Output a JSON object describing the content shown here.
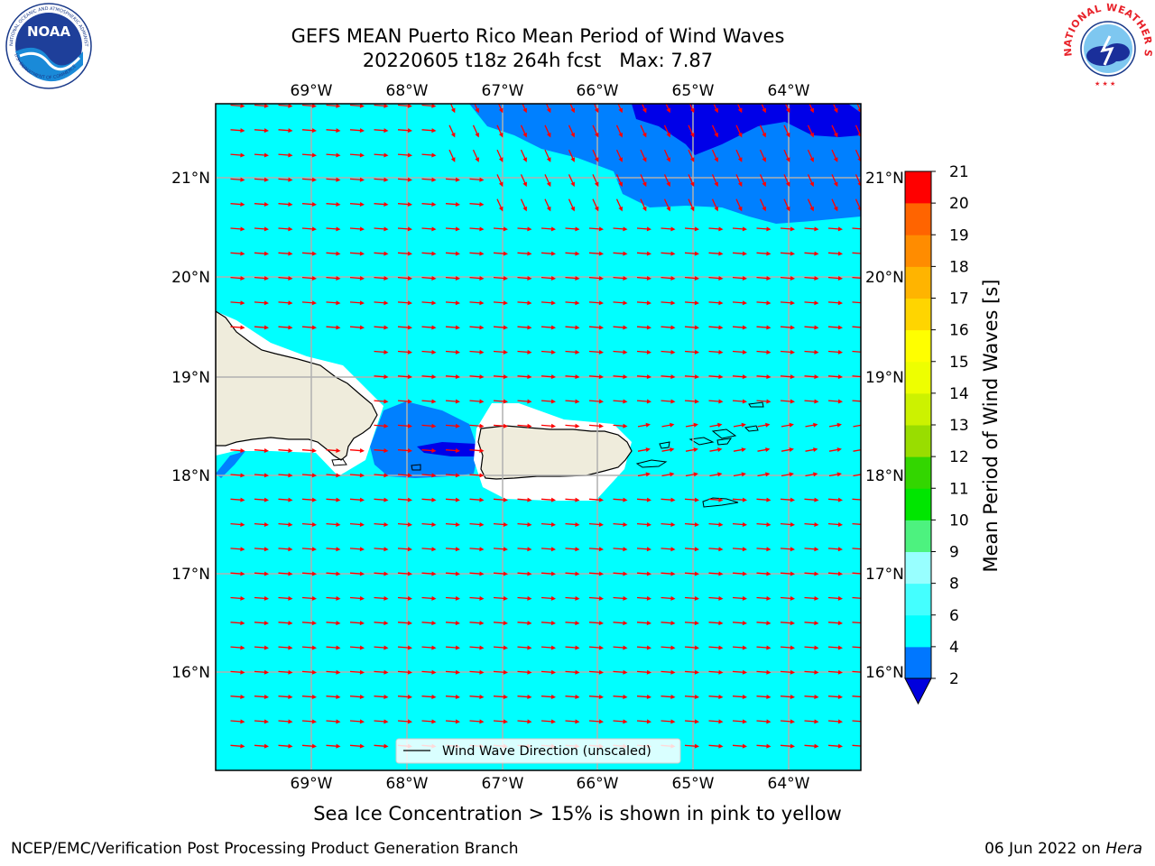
{
  "header": {
    "title_line1": "GEFS MEAN Puerto Rico Mean Period of Wind Waves",
    "title_line2": "20220605 t18z 264h fcst   Max: 7.87"
  },
  "logos": {
    "left": {
      "name": "NOAA",
      "ring_text": "NATIONAL OCEANIC AND ATMOSPHERIC ADMINISTRATION",
      "bottom_text": "U.S. DEPARTMENT OF COMMERCE"
    },
    "right": {
      "ring_text": "NATIONAL WEATHER SERVICE"
    }
  },
  "map": {
    "lon_labels": [
      "69°W",
      "68°W",
      "67°W",
      "66°W",
      "65°W",
      "64°W"
    ],
    "lat_labels": [
      "21°N",
      "20°N",
      "19°N",
      "18°N",
      "17°N",
      "16°N"
    ],
    "legend_label": "Wind Wave Direction (unscaled)",
    "colors": {
      "ocean_main": "#00ffff",
      "ocean_light": "#44ffff",
      "band_4_6": "#0080ff",
      "band_2_4": "#0000e8",
      "land": "#efecdc",
      "arrow": "#ff0000",
      "grid": "#b0b0b0"
    }
  },
  "colorbar": {
    "label": "Mean Period of Wind Waves [s]",
    "ticks": [
      "2",
      "4",
      "6",
      "8",
      "9",
      "10",
      "11",
      "12",
      "13",
      "14",
      "15",
      "16",
      "17",
      "18",
      "19",
      "20",
      "21"
    ],
    "colors": [
      "#0077ff",
      "#00ffff",
      "#44ffff",
      "#98ffff",
      "#4df27f",
      "#00e600",
      "#33d600",
      "#99dd00",
      "#ccf200",
      "#eeff00",
      "#ffff00",
      "#ffd500",
      "#ffb400",
      "#ff8c00",
      "#ff6400",
      "#ff3200",
      "#ff0000"
    ],
    "extend_min_color": "#0000dd"
  },
  "footer": {
    "note": "Sea Ice Concentration > 15% is shown in pink to yellow",
    "left": "NCEP/EMC/Verification Post Processing Product Generation Branch",
    "right_prefix": "06 Jun 2022 on ",
    "right_host": "Hera"
  }
}
